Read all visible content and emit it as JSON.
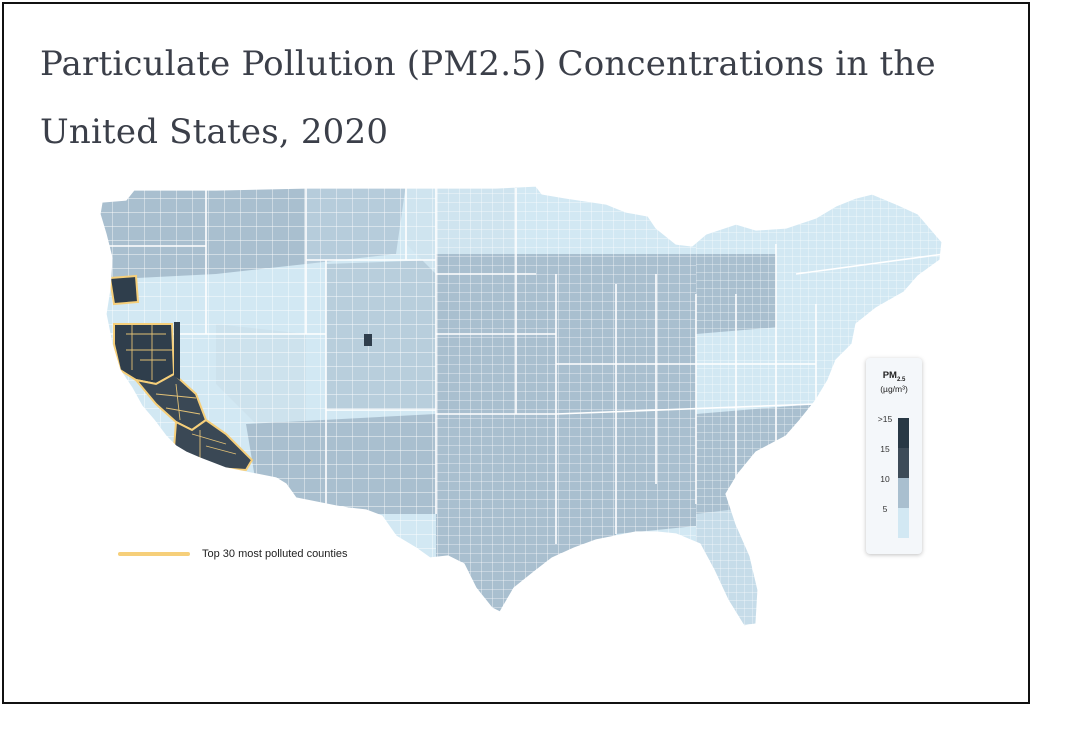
{
  "title": "Particulate Pollution (PM2.5) Concentrations in the United States, 2020",
  "legend": {
    "highlight_label": "Top 30 most polluted counties",
    "highlight_color": "#f6cf7a",
    "scale_title_main": "PM",
    "scale_title_sub": "2.5",
    "scale_unit": "(µg/m³)",
    "ticks": [
      ">15",
      "15",
      "10",
      "5"
    ],
    "bins": [
      {
        "label": "0-5",
        "color": "#d2e8f3"
      },
      {
        "label": "5-10",
        "color": "#a9bfcf"
      },
      {
        "label": "10-15",
        "color": "#3d4b58"
      },
      {
        "label": ">15",
        "color": "#283845"
      }
    ]
  },
  "colors": {
    "background": "#ffffff",
    "title": "#3b3f49",
    "county_border": "#ffffff",
    "low": "#d2e8f3",
    "mid": "#a9bfcf",
    "high": "#3d4b58",
    "highlight": "#f6cf7a"
  },
  "map_regions": [
    {
      "id": "california-central-valley",
      "pm_bin": ">15",
      "highlighted": true
    },
    {
      "id": "southern-california",
      "pm_bin": ">15",
      "highlighted": true
    },
    {
      "id": "oregon-southwest",
      "pm_bin": ">15",
      "highlighted": true
    },
    {
      "id": "pacific-northwest",
      "pm_bin": "5-10",
      "highlighted": false
    },
    {
      "id": "northern-rockies",
      "pm_bin": "5-10",
      "highlighted": false
    },
    {
      "id": "great-basin",
      "pm_bin": "0-5",
      "highlighted": false
    },
    {
      "id": "southwest",
      "pm_bin": "5-10",
      "highlighted": false
    },
    {
      "id": "northern-plains",
      "pm_bin": "0-5",
      "highlighted": false
    },
    {
      "id": "midwest",
      "pm_bin": "5-10",
      "highlighted": false
    },
    {
      "id": "texas",
      "pm_bin": "5-10",
      "highlighted": false
    },
    {
      "id": "southeast",
      "pm_bin": "5-10",
      "highlighted": false
    },
    {
      "id": "northeast",
      "pm_bin": "0-5",
      "highlighted": false
    },
    {
      "id": "florida",
      "pm_bin": "0-5",
      "highlighted": false
    }
  ]
}
